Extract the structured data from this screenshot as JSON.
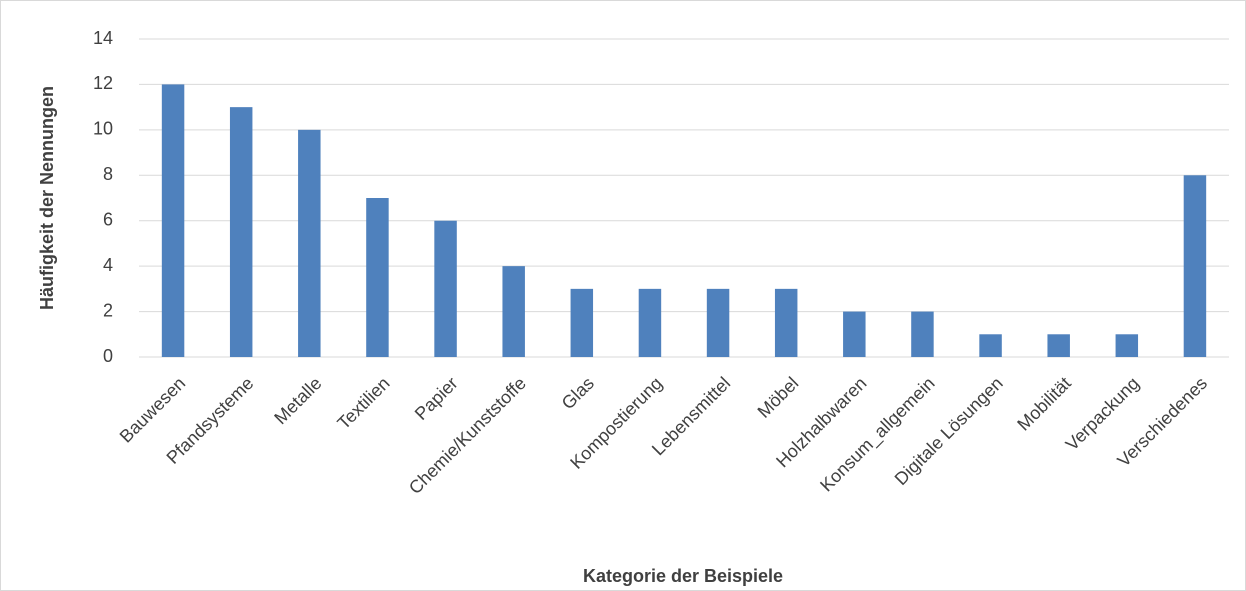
{
  "chart_data": {
    "type": "bar",
    "x_label": "Kategorie der Beispiele",
    "y_label": "Häufigkeit der Nennungen",
    "categories": [
      "Bauwesen",
      "Pfandsysteme",
      "Metalle",
      "Textilien",
      "Papier",
      "Chemie/Kunststoffe",
      "Glas",
      "Kompostierung",
      "Lebensmittel",
      "Möbel",
      "Holzhalbwaren",
      "Konsum_allgemein",
      "Digitale Lösungen",
      "Mobilität",
      "Verpackung",
      "Verschiedenes"
    ],
    "values": [
      12,
      11,
      10,
      7,
      6,
      4,
      3,
      3,
      3,
      3,
      2,
      2,
      1,
      1,
      1,
      8
    ],
    "color": "#4f81bd",
    "ylim": [
      0,
      14
    ],
    "yticks": [
      0,
      2,
      4,
      6,
      8,
      10,
      12,
      14
    ],
    "grid": true
  }
}
